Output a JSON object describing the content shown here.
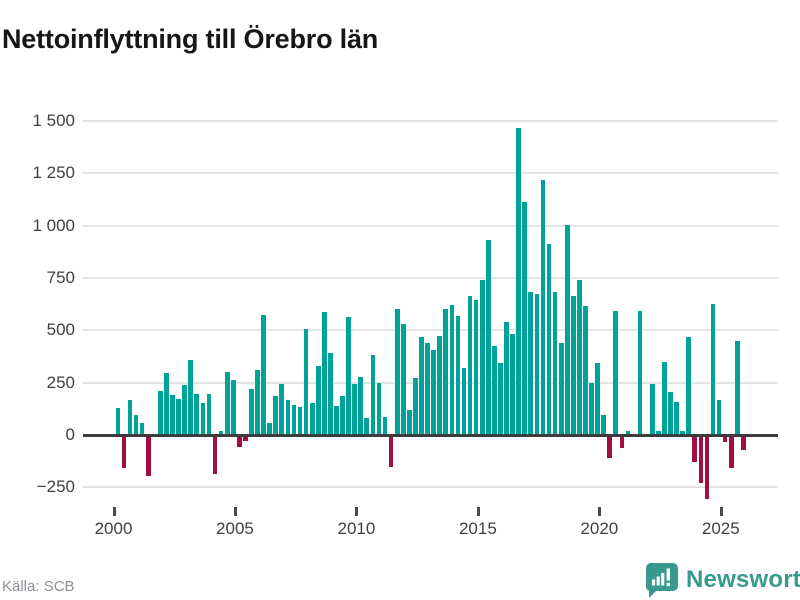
{
  "title": "Nettoinflyttning till Örebro län",
  "source": "Källa: SCB",
  "logo": {
    "text": "Newsworthy",
    "color": "#38998f"
  },
  "chart_data": {
    "type": "bar",
    "title": "Nettoinflyttning till Örebro län",
    "xlabel": "",
    "ylabel": "",
    "x_unit": "quarter",
    "series_note": "Quarterly net migration to Örebro county, 2000Q1–2025Q4",
    "years": [
      {
        "year": 2000,
        "q": [
          130,
          -150,
          165,
          95
        ]
      },
      {
        "year": 2001,
        "q": [
          55,
          -190,
          5,
          210
        ]
      },
      {
        "year": 2002,
        "q": [
          295,
          190,
          170,
          240
        ]
      },
      {
        "year": 2003,
        "q": [
          358,
          195,
          155,
          195
        ]
      },
      {
        "year": 2004,
        "q": [
          -180,
          20,
          300,
          262
        ]
      },
      {
        "year": 2005,
        "q": [
          -48,
          -20,
          220,
          310
        ]
      },
      {
        "year": 2006,
        "q": [
          575,
          55,
          187,
          244
        ]
      },
      {
        "year": 2007,
        "q": [
          168,
          144,
          132,
          505
        ]
      },
      {
        "year": 2008,
        "q": [
          152,
          330,
          588,
          390
        ]
      },
      {
        "year": 2009,
        "q": [
          140,
          188,
          565,
          245
        ]
      },
      {
        "year": 2010,
        "q": [
          276,
          80,
          383,
          247
        ]
      },
      {
        "year": 2011,
        "q": [
          85,
          -145,
          600,
          530
        ]
      },
      {
        "year": 2012,
        "q": [
          120,
          273,
          470,
          440
        ]
      },
      {
        "year": 2013,
        "q": [
          407,
          474,
          600,
          620
        ]
      },
      {
        "year": 2014,
        "q": [
          570,
          320,
          666,
          647
        ]
      },
      {
        "year": 2015,
        "q": [
          740,
          930,
          426,
          343
        ]
      },
      {
        "year": 2016,
        "q": [
          538,
          484,
          1465,
          1112
        ]
      },
      {
        "year": 2017,
        "q": [
          681,
          673,
          1216,
          911
        ]
      },
      {
        "year": 2018,
        "q": [
          685,
          440,
          1005,
          665
        ]
      },
      {
        "year": 2019,
        "q": [
          742,
          618,
          247,
          346
        ]
      },
      {
        "year": 2020,
        "q": [
          96,
          -101,
          594,
          -53
        ]
      },
      {
        "year": 2021,
        "q": [
          21,
          5,
          592,
          5
        ]
      },
      {
        "year": 2022,
        "q": [
          243,
          20,
          347,
          204
        ]
      },
      {
        "year": 2023,
        "q": [
          156,
          20,
          468,
          -120
        ]
      },
      {
        "year": 2024,
        "q": [
          -220,
          -300,
          627,
          168
        ]
      },
      {
        "year": 2025,
        "q": [
          -27,
          -152,
          447,
          -64
        ]
      }
    ],
    "y_ticks": [
      {
        "value": 1500,
        "label": "1 500"
      },
      {
        "value": 1250,
        "label": "1 250"
      },
      {
        "value": 1000,
        "label": "1 000"
      },
      {
        "value": 750,
        "label": "750"
      },
      {
        "value": 500,
        "label": "500"
      },
      {
        "value": 250,
        "label": "250"
      },
      {
        "value": 0,
        "label": "0"
      },
      {
        "value": -250,
        "label": "−250"
      }
    ],
    "x_ticks": [
      {
        "year": 2000,
        "label": "2000"
      },
      {
        "year": 2005,
        "label": "2005"
      },
      {
        "year": 2010,
        "label": "2010"
      },
      {
        "year": 2015,
        "label": "2015"
      },
      {
        "year": 2020,
        "label": "2020"
      },
      {
        "year": 2025,
        "label": "2025"
      }
    ],
    "ylim": [
      -330,
      1550
    ],
    "grid": true,
    "legend": "none",
    "colors": {
      "positive": "#00a39a",
      "negative": "#a00d42"
    },
    "source": "Källa: SCB"
  }
}
